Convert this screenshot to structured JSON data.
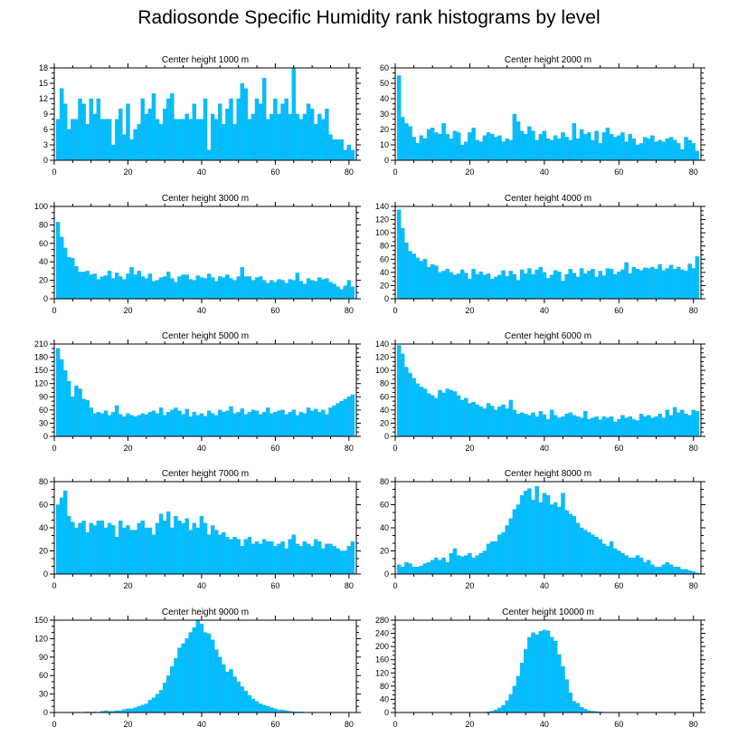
{
  "page_title": "Radiosonde Specific Humidity rank histograms by level",
  "colors": {
    "bar": "#00bfff",
    "bar_edge": "#2aa8e0",
    "axis": "#000000"
  },
  "chart_data": [
    {
      "type": "bar",
      "title": "Center height 1000 m",
      "xlim": [
        0,
        82
      ],
      "ylim": [
        0,
        18
      ],
      "xticks": [
        0,
        20,
        40,
        60,
        80
      ],
      "yticks": [
        0,
        3,
        6,
        9,
        12,
        15,
        18
      ],
      "values": [
        8,
        14,
        11,
        6,
        8,
        8,
        12,
        11,
        7,
        12,
        9,
        12,
        8,
        8,
        8,
        3,
        8,
        10,
        5,
        11,
        4,
        6,
        7,
        12,
        9,
        10,
        13,
        8,
        7,
        10,
        12,
        13,
        8,
        8,
        8,
        9,
        8,
        11,
        8,
        8,
        12,
        2,
        9,
        8,
        11,
        7,
        10,
        12,
        7,
        12,
        15,
        14,
        8,
        9,
        12,
        11,
        16,
        8,
        9,
        12,
        9,
        11,
        12,
        9,
        18,
        9,
        8,
        9,
        11,
        10,
        7,
        9,
        8,
        10,
        5,
        4,
        4,
        4,
        2,
        3,
        2
      ]
    },
    {
      "type": "bar",
      "title": "Center height 2000 m",
      "xlim": [
        0,
        82
      ],
      "ylim": [
        0,
        60
      ],
      "xticks": [
        0,
        20,
        40,
        60,
        80
      ],
      "yticks": [
        0,
        10,
        20,
        30,
        40,
        50,
        60
      ],
      "values": [
        55,
        28,
        24,
        22,
        15,
        11,
        16,
        14,
        20,
        21,
        18,
        17,
        24,
        17,
        14,
        19,
        18,
        10,
        12,
        18,
        21,
        13,
        12,
        16,
        18,
        17,
        15,
        16,
        12,
        14,
        13,
        30,
        25,
        19,
        17,
        22,
        19,
        13,
        17,
        19,
        14,
        13,
        16,
        14,
        18,
        15,
        13,
        24,
        14,
        20,
        17,
        18,
        13,
        19,
        11,
        18,
        21,
        17,
        15,
        16,
        18,
        12,
        17,
        14,
        10,
        11,
        15,
        14,
        16,
        12,
        13,
        12,
        14,
        15,
        13,
        11,
        7,
        15,
        13,
        11,
        6
      ]
    },
    {
      "type": "bar",
      "title": "Center height 3000 m",
      "xlim": [
        0,
        82
      ],
      "ylim": [
        0,
        100
      ],
      "xticks": [
        0,
        20,
        40,
        60,
        80
      ],
      "yticks": [
        0,
        20,
        40,
        60,
        80,
        100
      ],
      "values": [
        83,
        67,
        55,
        45,
        44,
        35,
        29,
        29,
        30,
        26,
        27,
        21,
        24,
        25,
        30,
        22,
        28,
        24,
        21,
        27,
        34,
        26,
        30,
        24,
        22,
        27,
        19,
        20,
        23,
        24,
        29,
        22,
        18,
        24,
        26,
        26,
        21,
        20,
        25,
        23,
        22,
        27,
        23,
        19,
        24,
        23,
        26,
        22,
        20,
        24,
        34,
        24,
        24,
        20,
        23,
        24,
        20,
        17,
        20,
        18,
        21,
        20,
        17,
        21,
        20,
        28,
        19,
        16,
        22,
        20,
        19,
        23,
        21,
        22,
        18,
        16,
        13,
        10,
        14,
        20,
        13
      ]
    },
    {
      "type": "bar",
      "title": "Center height 4000 m",
      "xlim": [
        0,
        82
      ],
      "ylim": [
        0,
        140
      ],
      "xticks": [
        0,
        20,
        40,
        60,
        80
      ],
      "yticks": [
        0,
        20,
        40,
        60,
        80,
        100,
        120,
        140
      ],
      "values": [
        135,
        107,
        85,
        72,
        68,
        62,
        57,
        60,
        48,
        52,
        50,
        40,
        42,
        45,
        40,
        36,
        38,
        44,
        39,
        30,
        45,
        37,
        41,
        36,
        38,
        30,
        33,
        36,
        43,
        34,
        42,
        37,
        28,
        44,
        38,
        46,
        37,
        44,
        48,
        40,
        31,
        36,
        43,
        41,
        27,
        37,
        45,
        39,
        33,
        46,
        38,
        42,
        45,
        33,
        42,
        35,
        46,
        45,
        37,
        41,
        44,
        55,
        38,
        48,
        45,
        43,
        47,
        46,
        48,
        45,
        52,
        43,
        46,
        51,
        45,
        48,
        44,
        42,
        53,
        46,
        64
      ]
    },
    {
      "type": "bar",
      "title": "Center height 5000 m",
      "xlim": [
        0,
        82
      ],
      "ylim": [
        0,
        210
      ],
      "xticks": [
        0,
        20,
        40,
        60,
        80
      ],
      "yticks": [
        0,
        30,
        60,
        90,
        120,
        150,
        180,
        210
      ],
      "values": [
        200,
        175,
        150,
        125,
        90,
        115,
        108,
        85,
        82,
        65,
        52,
        55,
        52,
        58,
        48,
        55,
        70,
        50,
        45,
        52,
        48,
        45,
        48,
        52,
        49,
        55,
        58,
        52,
        65,
        48,
        55,
        60,
        65,
        58,
        50,
        62,
        45,
        55,
        48,
        52,
        46,
        58,
        52,
        48,
        60,
        55,
        58,
        68,
        52,
        55,
        63,
        50,
        55,
        60,
        58,
        50,
        55,
        65,
        52,
        55,
        58,
        60,
        50,
        55,
        60,
        48,
        55,
        52,
        65,
        58,
        62,
        55,
        60,
        50,
        65,
        70,
        75,
        80,
        85,
        90,
        95
      ]
    },
    {
      "type": "bar",
      "title": "Center height 6000 m",
      "xlim": [
        0,
        82
      ],
      "ylim": [
        0,
        140
      ],
      "xticks": [
        0,
        20,
        40,
        60,
        80
      ],
      "yticks": [
        0,
        20,
        40,
        60,
        80,
        100,
        120,
        140
      ],
      "values": [
        138,
        125,
        105,
        96,
        88,
        80,
        75,
        72,
        65,
        62,
        58,
        70,
        66,
        72,
        70,
        68,
        62,
        55,
        58,
        50,
        52,
        48,
        45,
        42,
        50,
        46,
        40,
        45,
        48,
        42,
        55,
        40,
        34,
        36,
        34,
        32,
        36,
        30,
        38,
        33,
        26,
        40,
        32,
        28,
        30,
        34,
        36,
        32,
        30,
        28,
        38,
        26,
        28,
        30,
        25,
        30,
        28,
        30,
        22,
        26,
        32,
        28,
        30,
        26,
        24,
        34,
        30,
        32,
        28,
        30,
        34,
        28,
        40,
        32,
        44,
        36,
        40,
        34,
        32,
        40,
        38
      ]
    },
    {
      "type": "bar",
      "title": "Center height 7000 m",
      "xlim": [
        0,
        82
      ],
      "ylim": [
        0,
        80
      ],
      "xticks": [
        0,
        20,
        40,
        60,
        80
      ],
      "yticks": [
        0,
        20,
        40,
        60,
        80
      ],
      "values": [
        60,
        66,
        72,
        50,
        45,
        40,
        44,
        46,
        36,
        44,
        42,
        46,
        46,
        40,
        44,
        42,
        32,
        46,
        40,
        42,
        38,
        38,
        44,
        46,
        40,
        40,
        34,
        44,
        52,
        46,
        54,
        40,
        50,
        46,
        44,
        48,
        38,
        44,
        40,
        50,
        44,
        34,
        42,
        38,
        34,
        36,
        32,
        30,
        32,
        30,
        24,
        30,
        32,
        26,
        28,
        26,
        30,
        28,
        28,
        24,
        26,
        28,
        22,
        30,
        34,
        26,
        24,
        28,
        26,
        24,
        30,
        28,
        22,
        26,
        26,
        24,
        22,
        20,
        20,
        24,
        28
      ]
    },
    {
      "type": "bar",
      "title": "Center height 8000 m",
      "xlim": [
        0,
        82
      ],
      "ylim": [
        0,
        80
      ],
      "xticks": [
        0,
        20,
        40,
        60,
        80
      ],
      "yticks": [
        0,
        20,
        40,
        60,
        80
      ],
      "values": [
        8,
        6,
        10,
        9,
        6,
        6,
        7,
        9,
        10,
        12,
        14,
        12,
        14,
        10,
        18,
        22,
        16,
        15,
        16,
        18,
        14,
        16,
        18,
        20,
        26,
        28,
        28,
        34,
        36,
        42,
        48,
        56,
        60,
        68,
        72,
        74,
        64,
        76,
        62,
        70,
        68,
        60,
        62,
        58,
        70,
        55,
        52,
        50,
        44,
        40,
        38,
        36,
        34,
        32,
        30,
        26,
        24,
        28,
        22,
        20,
        18,
        16,
        14,
        14,
        16,
        14,
        10,
        12,
        8,
        6,
        6,
        8,
        10,
        8,
        6,
        6,
        4,
        4,
        3,
        2,
        1
      ]
    },
    {
      "type": "bar",
      "title": "Center height 9000 m",
      "xlim": [
        0,
        82
      ],
      "ylim": [
        0,
        150
      ],
      "xticks": [
        0,
        20,
        40,
        60,
        80
      ],
      "yticks": [
        0,
        30,
        60,
        90,
        120,
        150
      ],
      "values": [
        0,
        0,
        0,
        0,
        0,
        0,
        0,
        0,
        1,
        0,
        1,
        0,
        2,
        3,
        2,
        2,
        3,
        3,
        5,
        6,
        6,
        8,
        10,
        12,
        14,
        20,
        24,
        30,
        36,
        48,
        60,
        75,
        88,
        105,
        112,
        120,
        130,
        138,
        150,
        144,
        130,
        128,
        118,
        102,
        90,
        78,
        66,
        70,
        58,
        50,
        42,
        35,
        28,
        22,
        18,
        14,
        12,
        10,
        8,
        6,
        4,
        4,
        3,
        2,
        1,
        1,
        1,
        0,
        0,
        0,
        0,
        0,
        0,
        0,
        0,
        0,
        0,
        0,
        0,
        0,
        0
      ]
    },
    {
      "type": "bar",
      "title": "Center height 10000 m",
      "xlim": [
        0,
        82
      ],
      "ylim": [
        0,
        280
      ],
      "xticks": [
        0,
        20,
        40,
        60,
        80
      ],
      "yticks": [
        0,
        40,
        80,
        120,
        160,
        200,
        240,
        280
      ],
      "values": [
        0,
        0,
        0,
        0,
        0,
        0,
        0,
        0,
        0,
        0,
        0,
        0,
        0,
        0,
        0,
        0,
        0,
        0,
        0,
        0,
        0,
        0,
        0,
        1,
        2,
        4,
        8,
        14,
        22,
        36,
        55,
        80,
        110,
        150,
        192,
        228,
        242,
        236,
        246,
        250,
        248,
        228,
        216,
        176,
        140,
        100,
        60,
        34,
        28,
        16,
        10,
        6,
        4,
        3,
        2,
        1,
        1,
        0,
        0,
        0,
        0,
        0,
        0,
        0,
        0,
        0,
        0,
        0,
        0,
        0,
        0,
        0,
        0,
        0,
        0,
        0,
        0,
        0,
        0,
        0,
        0
      ]
    }
  ]
}
